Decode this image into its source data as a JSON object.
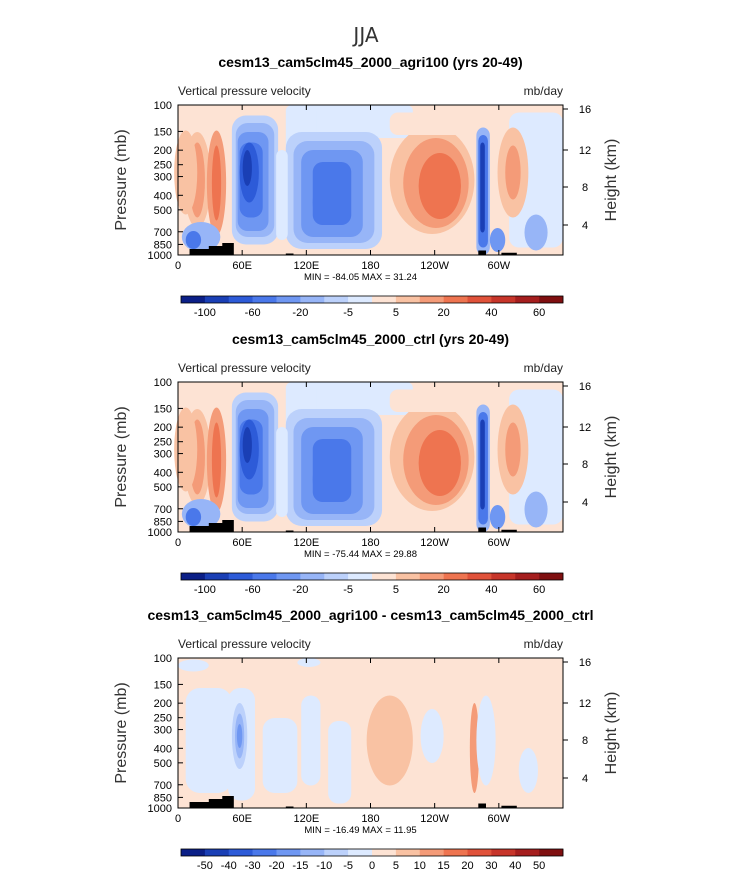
{
  "figure": {
    "title": "JJA"
  },
  "chart_data": [
    {
      "type": "heatmap",
      "title": "cesm13_cam5clm45_2000_agri100 (yrs 20-49)",
      "left_label": "Vertical pressure velocity",
      "right_label": "mb/day",
      "ylabel": "Pressure (mb)",
      "ylabel_right": "Height (km)",
      "x_ticks": [
        "0",
        "60E",
        "120E",
        "180",
        "120W",
        "60W"
      ],
      "y_ticks": [
        "100",
        "150",
        "200",
        "250",
        "300",
        "400",
        "500",
        "700",
        "850",
        "1000"
      ],
      "height_ticks": [
        "16",
        "12",
        "8",
        "4"
      ],
      "stats_text": "MIN = -84.05   MAX =  31.24",
      "colorbar": {
        "labels": [
          "-100",
          "-60",
          "-20",
          "-5",
          "5",
          "20",
          "40",
          "60"
        ],
        "colors": [
          "#0b1f87",
          "#1a3fb5",
          "#2d5bd8",
          "#4a78ea",
          "#6f97f2",
          "#97b5f7",
          "#bcd1fb",
          "#ddeaff",
          "#fde3d4",
          "#f9c2a3",
          "#f49b78",
          "#ee7450",
          "#e0523a",
          "#c7352a",
          "#a51e1e",
          "#7f0f10"
        ]
      },
      "grid": false
    },
    {
      "type": "heatmap",
      "title": "cesm13_cam5clm45_2000_ctrl (yrs 20-49)",
      "left_label": "Vertical pressure velocity",
      "right_label": "mb/day",
      "ylabel": "Pressure (mb)",
      "ylabel_right": "Height (km)",
      "x_ticks": [
        "0",
        "60E",
        "120E",
        "180",
        "120W",
        "60W"
      ],
      "y_ticks": [
        "100",
        "150",
        "200",
        "250",
        "300",
        "400",
        "500",
        "700",
        "850",
        "1000"
      ],
      "height_ticks": [
        "16",
        "12",
        "8",
        "4"
      ],
      "stats_text": "MIN = -75.44   MAX =  29.88",
      "colorbar": {
        "labels": [
          "-100",
          "-60",
          "-20",
          "-5",
          "5",
          "20",
          "40",
          "60"
        ],
        "colors": [
          "#0b1f87",
          "#1a3fb5",
          "#2d5bd8",
          "#4a78ea",
          "#6f97f2",
          "#97b5f7",
          "#bcd1fb",
          "#ddeaff",
          "#fde3d4",
          "#f9c2a3",
          "#f49b78",
          "#ee7450",
          "#e0523a",
          "#c7352a",
          "#a51e1e",
          "#7f0f10"
        ]
      },
      "grid": false
    },
    {
      "type": "heatmap",
      "title": "cesm13_cam5clm45_2000_agri100 - cesm13_cam5clm45_2000_ctrl",
      "left_label": "Vertical pressure velocity",
      "right_label": "mb/day",
      "ylabel": "Pressure (mb)",
      "ylabel_right": "Height (km)",
      "x_ticks": [
        "0",
        "60E",
        "120E",
        "180",
        "120W",
        "60W"
      ],
      "y_ticks": [
        "100",
        "150",
        "200",
        "250",
        "300",
        "400",
        "500",
        "700",
        "850",
        "1000"
      ],
      "height_ticks": [
        "16",
        "12",
        "8",
        "4"
      ],
      "stats_text": "MIN = -16.49   MAX =  11.95",
      "colorbar": {
        "labels": [
          "-50",
          "-40",
          "-30",
          "-20",
          "-15",
          "-10",
          "-5",
          "0",
          "5",
          "10",
          "15",
          "20",
          "30",
          "40",
          "50"
        ],
        "colors": [
          "#0b1f87",
          "#1a3fb5",
          "#2d5bd8",
          "#4a78ea",
          "#6f97f2",
          "#97b5f7",
          "#bcd1fb",
          "#ddeaff",
          "#fde3d4",
          "#f9c2a3",
          "#f49b78",
          "#ee7450",
          "#e0523a",
          "#c7352a",
          "#a51e1e",
          "#7f0f10"
        ]
      },
      "grid": false
    }
  ]
}
